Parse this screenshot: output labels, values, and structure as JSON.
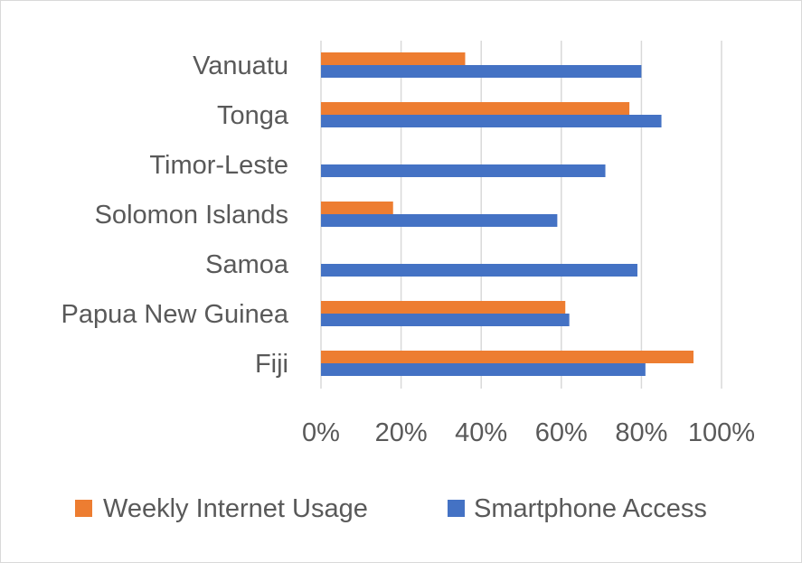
{
  "chart_data": {
    "type": "bar",
    "orientation": "horizontal",
    "categories": [
      "Vanuatu",
      "Tonga",
      "Timor-Leste",
      "Solomon Islands",
      "Samoa",
      "Papua New Guinea",
      "Fiji"
    ],
    "series": [
      {
        "name": "Weekly Internet Usage",
        "color": "#ED7D31",
        "values": [
          36,
          77,
          null,
          18,
          null,
          61,
          93
        ]
      },
      {
        "name": "Smartphone Access",
        "color": "#4472C4",
        "values": [
          80,
          85,
          71,
          59,
          79,
          62,
          81
        ]
      }
    ],
    "xlim": [
      0,
      100
    ],
    "xticks": [
      0,
      20,
      40,
      60,
      80,
      100
    ],
    "xtick_labels": [
      "0%",
      "20%",
      "40%",
      "60%",
      "80%",
      "100%"
    ],
    "grid": "vertical",
    "legend": {
      "position": "bottom"
    },
    "title": "",
    "xlabel": "",
    "ylabel": ""
  }
}
